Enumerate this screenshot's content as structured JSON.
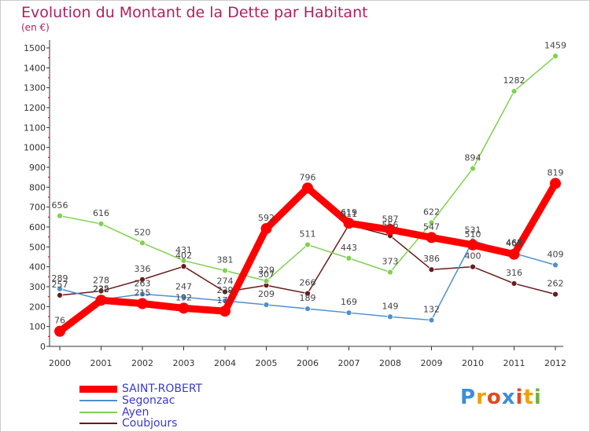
{
  "header": {
    "title": "Evolution du Montant de la Dette par Habitant",
    "subtitle": "(en €)"
  },
  "logo": {
    "letters": [
      "P",
      "r",
      "o",
      "x",
      "i",
      "t",
      "i"
    ],
    "colors": [
      "#3d8ed8",
      "#f0a000",
      "#e04a20",
      "#3d8ed8",
      "#e04a20",
      "#f0a000",
      "#6db33f"
    ]
  },
  "chart_data": {
    "type": "line",
    "title": "Evolution du Montant de la Dette par Habitant",
    "ylabel": "(en €)",
    "x": [
      "2000",
      "2001",
      "2002",
      "2003",
      "2004",
      "2005",
      "2006",
      "2007",
      "2008",
      "2009",
      "2010",
      "2011",
      "2012"
    ],
    "ylim": [
      0,
      1500
    ],
    "yticks": [
      0,
      100,
      200,
      300,
      400,
      500,
      600,
      700,
      800,
      900,
      1000,
      1100,
      1200,
      1300,
      1400,
      1500
    ],
    "grid": false,
    "legend_position": "bottom-left",
    "series": [
      {
        "name": "SAINT-ROBERT",
        "color": "#ff0000",
        "values": [
          76,
          232,
          215,
          192,
          177,
          592,
          796,
          619,
          587,
          547,
          510,
          463,
          819
        ]
      },
      {
        "name": "Segonzac",
        "color": "#4f8fd0",
        "values": [
          289,
          235,
          263,
          247,
          229,
          209,
          189,
          169,
          149,
          132,
          531,
          468,
          409
        ]
      },
      {
        "name": "Ayen",
        "color": "#7ed24e",
        "values": [
          656,
          616,
          520,
          431,
          381,
          329,
          511,
          443,
          373,
          622,
          894,
          1282,
          1459
        ]
      },
      {
        "name": "Coubjours",
        "color": "#6a1a1a",
        "values": [
          257,
          278,
          336,
          402,
          274,
          307,
          266,
          611,
          556,
          386,
          400,
          316,
          262
        ]
      }
    ]
  }
}
